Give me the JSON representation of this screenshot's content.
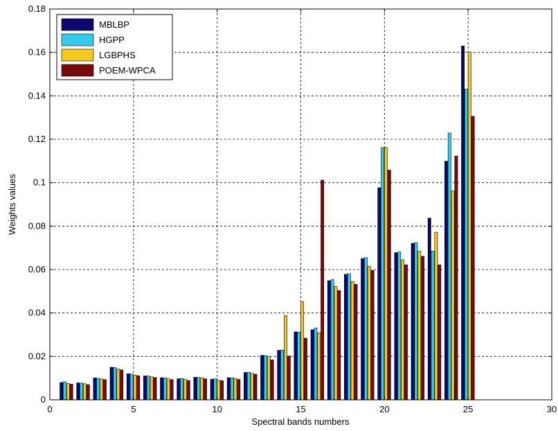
{
  "chart_data": {
    "type": "bar",
    "xlabel": "Spectral bands numbers",
    "ylabel": "Weights values",
    "xlim": [
      0,
      30
    ],
    "ylim": [
      0,
      0.18
    ],
    "xticks": [
      "0",
      "5",
      "10",
      "15",
      "20",
      "25",
      "30"
    ],
    "yticks": [
      "0",
      "0.02",
      "0.04",
      "0.06",
      "0.08",
      "0.1",
      "0.12",
      "0.14",
      "0.16",
      "0.18"
    ],
    "grid": true,
    "legend_position": "top-left",
    "categories": [
      1,
      2,
      3,
      4,
      5,
      6,
      7,
      8,
      9,
      10,
      11,
      12,
      13,
      14,
      15,
      16,
      17,
      18,
      19,
      20,
      21,
      22,
      23,
      24,
      25
    ],
    "series": [
      {
        "name": "MBLBP",
        "color": "#0a0a6e",
        "values": [
          0.008,
          0.0078,
          0.0101,
          0.015,
          0.012,
          0.011,
          0.0102,
          0.0097,
          0.0104,
          0.0095,
          0.0102,
          0.0126,
          0.0205,
          0.0228,
          0.0313,
          0.0323,
          0.0549,
          0.0578,
          0.0651,
          0.0977,
          0.0678,
          0.0721,
          0.0837,
          0.1099,
          0.163
        ]
      },
      {
        "name": "HGPP",
        "color": "#33ccee",
        "values": [
          0.0083,
          0.0077,
          0.0099,
          0.0148,
          0.0119,
          0.011,
          0.0101,
          0.0098,
          0.0103,
          0.0097,
          0.0101,
          0.0127,
          0.0204,
          0.0229,
          0.0312,
          0.0331,
          0.0553,
          0.0581,
          0.0655,
          0.1162,
          0.0681,
          0.0724,
          0.0685,
          0.1229,
          0.1431
        ]
      },
      {
        "name": "LGBPHS",
        "color": "#f5c91b",
        "values": [
          0.0075,
          0.0074,
          0.0096,
          0.0142,
          0.0114,
          0.0106,
          0.0097,
          0.0094,
          0.0101,
          0.009,
          0.0098,
          0.0122,
          0.0199,
          0.0388,
          0.0451,
          0.0309,
          0.0522,
          0.0545,
          0.0615,
          0.1162,
          0.0645,
          0.0685,
          0.0772,
          0.0962,
          0.1602
        ]
      },
      {
        "name": "POEM-WPCA",
        "color": "#7a0a0a",
        "values": [
          0.0072,
          0.007,
          0.0093,
          0.0138,
          0.0111,
          0.0103,
          0.0093,
          0.0089,
          0.0097,
          0.0088,
          0.0094,
          0.0118,
          0.0184,
          0.0202,
          0.0284,
          0.1012,
          0.0503,
          0.0532,
          0.0596,
          0.1058,
          0.0622,
          0.0661,
          0.0622,
          0.1123,
          0.1306
        ]
      }
    ]
  }
}
